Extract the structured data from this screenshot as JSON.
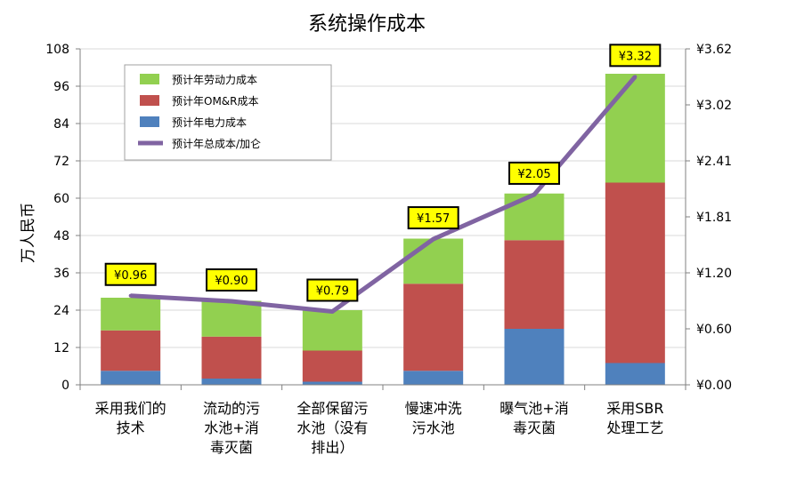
{
  "chart_data": {
    "type": "bar",
    "stacked": true,
    "title": "系统操作成本",
    "ylabel": "万人民币",
    "y2label": "",
    "ylim": [
      0,
      108
    ],
    "yticks": [
      0,
      12,
      24,
      36,
      48,
      60,
      72,
      84,
      96,
      108
    ],
    "y2lim": [
      0,
      3.62
    ],
    "y2ticks": [
      "¥0.00",
      "¥0.60",
      "¥1.20",
      "¥1.81",
      "¥2.41",
      "¥3.02",
      "¥3.62"
    ],
    "grid": true,
    "legend_position": "top-left",
    "categories": [
      [
        "采用我们的",
        "技术"
      ],
      [
        "流动的污",
        "水池+消",
        "毒灭菌"
      ],
      [
        "全部保留污",
        "水池（没有",
        "排出）"
      ],
      [
        "慢速冲洗",
        "污水池"
      ],
      [
        "曝气池+消",
        "毒灭菌"
      ],
      [
        "采用SBR",
        "处理工艺"
      ]
    ],
    "series": [
      {
        "name": "预计年电力成本",
        "color": "#4f81bd",
        "values": [
          4.5,
          2,
          1,
          4.5,
          18,
          7
        ]
      },
      {
        "name": "预计年OM&R成本",
        "color": "#c0504d",
        "values": [
          13,
          13.5,
          10,
          28,
          28.5,
          58
        ]
      },
      {
        "name": "预计年劳动力成本",
        "color": "#92d050",
        "values": [
          10.5,
          11.5,
          13,
          14.5,
          15,
          35
        ]
      }
    ],
    "line": {
      "name": "预计年总成本/加仑",
      "color": "#8064a2",
      "values": [
        0.96,
        0.9,
        0.79,
        1.57,
        2.05,
        3.32
      ],
      "labels": [
        "¥0.96",
        "¥0.90",
        "¥0.79",
        "¥1.57",
        "¥2.05",
        "¥3.32"
      ]
    },
    "legend_order": [
      "预计年劳动力成本",
      "预计年OM&R成本",
      "预计年电力成本",
      "预计年总成本/加仑"
    ]
  }
}
